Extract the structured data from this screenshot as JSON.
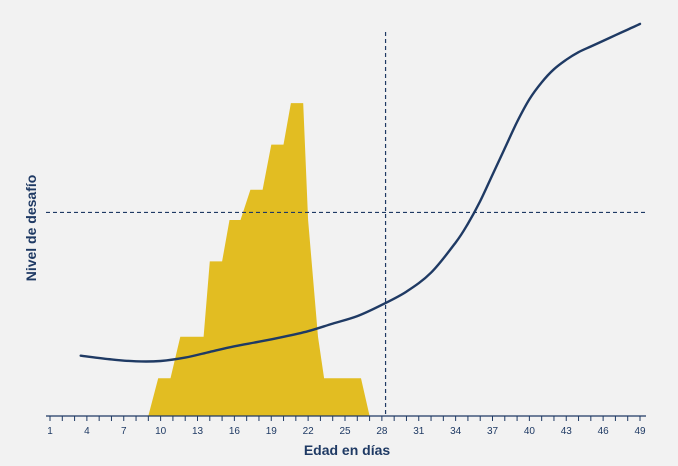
{
  "chart_data": {
    "type": "area",
    "title": "",
    "xlabel": "Edad en días",
    "ylabel": "Nivel de desafío",
    "xlim": [
      1,
      49
    ],
    "ylim": [
      0,
      100
    ],
    "x_ticks": [
      1,
      4,
      7,
      10,
      13,
      16,
      19,
      22,
      25,
      28,
      31,
      34,
      37,
      40,
      43,
      46,
      49
    ],
    "grid": false,
    "legend": "none",
    "colors": {
      "area": "#e2bd22",
      "curve": "#1f3a64",
      "axis": "#1f3a64"
    },
    "series": [
      {
        "type": "area",
        "points": [
          [
            9.0,
            0
          ],
          [
            9.8,
            10
          ],
          [
            10.8,
            10
          ],
          [
            11.6,
            21
          ],
          [
            13.5,
            21
          ],
          [
            14.0,
            41
          ],
          [
            15.0,
            41
          ],
          [
            15.6,
            52
          ],
          [
            16.5,
            52
          ],
          [
            17.3,
            60
          ],
          [
            18.3,
            60
          ],
          [
            19.0,
            72
          ],
          [
            20.0,
            72
          ],
          [
            20.6,
            83
          ],
          [
            21.6,
            83
          ],
          [
            22.0,
            52
          ],
          [
            22.8,
            21
          ],
          [
            23.3,
            10
          ],
          [
            26.3,
            10
          ],
          [
            27.0,
            0
          ]
        ]
      },
      {
        "type": "line",
        "points": [
          [
            3.5,
            16
          ],
          [
            6,
            15
          ],
          [
            8,
            14.5
          ],
          [
            10,
            14.6
          ],
          [
            12,
            15.5
          ],
          [
            14,
            17
          ],
          [
            16,
            18.5
          ],
          [
            18,
            19.7
          ],
          [
            20,
            21
          ],
          [
            22,
            22.5
          ],
          [
            24,
            24.5
          ],
          [
            26,
            26.5
          ],
          [
            28,
            29.5
          ],
          [
            30,
            33
          ],
          [
            32,
            38
          ],
          [
            34,
            46
          ],
          [
            35,
            51
          ],
          [
            36,
            57
          ],
          [
            37,
            64
          ],
          [
            38,
            71
          ],
          [
            39,
            78
          ],
          [
            40,
            84
          ],
          [
            41,
            88.5
          ],
          [
            42,
            92
          ],
          [
            43,
            94.5
          ],
          [
            44,
            96.5
          ],
          [
            45,
            98
          ],
          [
            46,
            99.5
          ],
          [
            47,
            101
          ],
          [
            48,
            102.5
          ],
          [
            49,
            104
          ]
        ]
      }
    ],
    "reference_lines": {
      "vertical_x": 28.3,
      "horizontal_y": 54
    }
  }
}
